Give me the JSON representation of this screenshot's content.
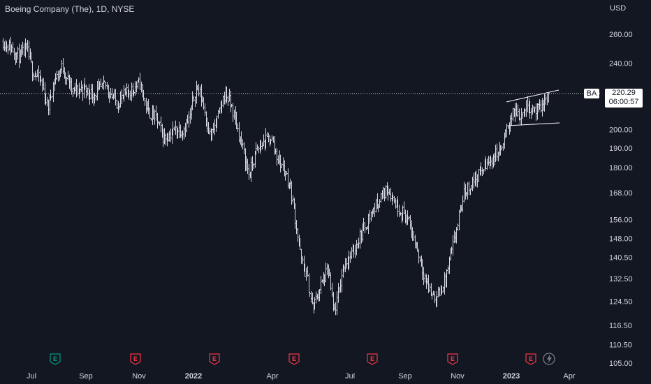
{
  "header": {
    "title": "Boeing Company (The), 1D, NYSE",
    "currency": "USD"
  },
  "price_tag": {
    "symbol": "BA",
    "price": "220.29",
    "countdown": "06:00:57",
    "color": "#ffffff"
  },
  "colors": {
    "background": "#131722",
    "bars": "#d1d4dc",
    "earnings_future": "#089981",
    "earnings_past": "#f23645",
    "trendline": "#ffffff"
  },
  "chart_data": {
    "type": "ohlc",
    "y_scale": "log",
    "y_ticks": [
      "260.00",
      "240.00",
      "220.00",
      "200.00",
      "190.00",
      "180.00",
      "168.00",
      "156.00",
      "148.00",
      "140.50",
      "132.50",
      "124.50",
      "116.50",
      "110.50",
      "105.00"
    ],
    "x_ticks": [
      {
        "label": "Jul",
        "bold": false
      },
      {
        "label": "Sep",
        "bold": false
      },
      {
        "label": "Nov",
        "bold": false
      },
      {
        "label": "2022",
        "bold": true
      },
      {
        "label": "Apr",
        "bold": false
      },
      {
        "label": "Jul",
        "bold": false
      },
      {
        "label": "Sep",
        "bold": false
      },
      {
        "label": "Nov",
        "bold": false
      },
      {
        "label": "2023",
        "bold": true
      },
      {
        "label": "Apr",
        "bold": false
      }
    ],
    "last_price": 220.29,
    "price_path": [
      [
        "2021-05-28",
        255
      ],
      [
        "2021-06-07",
        250
      ],
      [
        "2021-06-17",
        244
      ],
      [
        "2021-06-24",
        250
      ],
      [
        "2021-07-01",
        236
      ],
      [
        "2021-07-12",
        227
      ],
      [
        "2021-07-19",
        212
      ],
      [
        "2021-07-26",
        228
      ],
      [
        "2021-08-05",
        238
      ],
      [
        "2021-08-16",
        222
      ],
      [
        "2021-08-30",
        224
      ],
      [
        "2021-09-10",
        220
      ],
      [
        "2021-09-24",
        226
      ],
      [
        "2021-10-07",
        215
      ],
      [
        "2021-10-21",
        222
      ],
      [
        "2021-11-03",
        227
      ],
      [
        "2021-11-12",
        210
      ],
      [
        "2021-11-22",
        206
      ],
      [
        "2021-12-01",
        195
      ],
      [
        "2021-12-15",
        200
      ],
      [
        "2021-12-23",
        200
      ],
      [
        "2021-12-31",
        206
      ],
      [
        "2022-01-07",
        225
      ],
      [
        "2022-01-14",
        218
      ],
      [
        "2022-01-24",
        195
      ],
      [
        "2022-02-04",
        210
      ],
      [
        "2022-02-10",
        222
      ],
      [
        "2022-02-18",
        212
      ],
      [
        "2022-02-28",
        194
      ],
      [
        "2022-03-10",
        176
      ],
      [
        "2022-03-18",
        188
      ],
      [
        "2022-03-25",
        192
      ],
      [
        "2022-04-04",
        196
      ],
      [
        "2022-04-12",
        185
      ],
      [
        "2022-04-21",
        178
      ],
      [
        "2022-04-27",
        170
      ],
      [
        "2022-05-02",
        158
      ],
      [
        "2022-05-09",
        140
      ],
      [
        "2022-05-16",
        133
      ],
      [
        "2022-05-23",
        122
      ],
      [
        "2022-06-01",
        130
      ],
      [
        "2022-06-10",
        136
      ],
      [
        "2022-06-16",
        120
      ],
      [
        "2022-06-21",
        126
      ],
      [
        "2022-06-28",
        138
      ],
      [
        "2022-07-08",
        142
      ],
      [
        "2022-07-18",
        150
      ],
      [
        "2022-07-29",
        158
      ],
      [
        "2022-08-10",
        166
      ],
      [
        "2022-08-18",
        170
      ],
      [
        "2022-08-29",
        162
      ],
      [
        "2022-09-09",
        157
      ],
      [
        "2022-09-20",
        145
      ],
      [
        "2022-10-03",
        130
      ],
      [
        "2022-10-13",
        125
      ],
      [
        "2022-10-24",
        132
      ],
      [
        "2022-11-04",
        148
      ],
      [
        "2022-11-15",
        168
      ],
      [
        "2022-11-30",
        176
      ],
      [
        "2022-12-12",
        182
      ],
      [
        "2022-12-30",
        191
      ],
      [
        "2023-01-06",
        205
      ],
      [
        "2023-01-13",
        210
      ],
      [
        "2023-01-20",
        208
      ],
      [
        "2023-01-27",
        214
      ],
      [
        "2023-02-03",
        212
      ],
      [
        "2023-02-10",
        210
      ],
      [
        "2023-02-17",
        216
      ],
      [
        "2023-02-21",
        220
      ]
    ],
    "earnings": [
      {
        "date": "2021-07-28",
        "label": "E",
        "status": "past"
      },
      {
        "date": "2021-10-27",
        "label": "E",
        "status": "past"
      },
      {
        "date": "2022-01-26",
        "label": "E",
        "status": "past"
      },
      {
        "date": "2022-04-27",
        "label": "E",
        "status": "past"
      },
      {
        "date": "2022-07-27",
        "label": "E",
        "status": "past"
      },
      {
        "date": "2022-10-26",
        "label": "E",
        "status": "past"
      },
      {
        "date": "2023-01-25",
        "label": "E",
        "status": "past"
      }
    ],
    "channel": {
      "upper": [
        [
          "2023-01-05",
          210
        ],
        [
          "2023-02-21",
          220
        ]
      ],
      "lower": [
        [
          "2023-01-05",
          201
        ],
        [
          "2023-02-21",
          204
        ]
      ]
    },
    "grid": false,
    "legend": "none"
  }
}
